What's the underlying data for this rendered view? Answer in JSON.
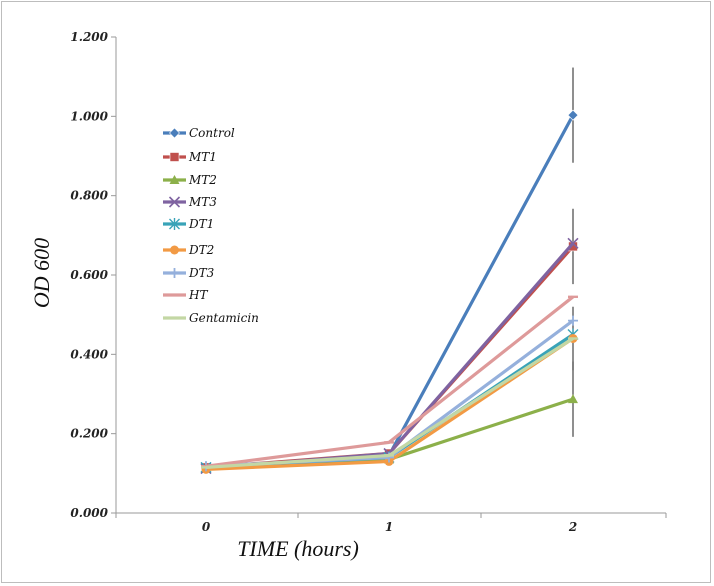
{
  "chart_data": {
    "type": "line",
    "xlabel": "TIME (hours)",
    "ylabel": "OD 600",
    "categories": [
      "0",
      "1",
      "2"
    ],
    "ylim": [
      0,
      1.2
    ],
    "yticks": [
      "0.000",
      "0.200",
      "0.400",
      "0.600",
      "0.800",
      "1.000",
      "1.200"
    ],
    "grid": false,
    "legend_position": "left",
    "series": [
      {
        "name": "Control",
        "color": "#4a7ebb",
        "marker": "diamond",
        "values": [
          0.115,
          0.145,
          1.003
        ],
        "error": [
          0,
          0,
          0.12
        ]
      },
      {
        "name": "MT1",
        "color": "#c0504d",
        "marker": "square",
        "values": [
          0.115,
          0.15,
          0.672
        ],
        "error": [
          0,
          0,
          0.095
        ]
      },
      {
        "name": "MT2",
        "color": "#8cb04a",
        "marker": "triangle",
        "values": [
          0.112,
          0.135,
          0.287
        ],
        "error": [
          0,
          0,
          0.095
        ]
      },
      {
        "name": "MT3",
        "color": "#7f63a1",
        "marker": "x",
        "values": [
          0.112,
          0.15,
          0.68
        ],
        "error": [
          0,
          0,
          0
        ]
      },
      {
        "name": "DT1",
        "color": "#39a3b8",
        "marker": "star",
        "values": [
          0.115,
          0.14,
          0.45
        ],
        "error": [
          0,
          0,
          0
        ]
      },
      {
        "name": "DT2",
        "color": "#f29a44",
        "marker": "circle",
        "values": [
          0.11,
          0.13,
          0.44
        ],
        "error": [
          0,
          0,
          0.08
        ]
      },
      {
        "name": "DT3",
        "color": "#95b0dc",
        "marker": "plus",
        "values": [
          0.118,
          0.14,
          0.485
        ],
        "error": [
          0,
          0,
          0
        ]
      },
      {
        "name": "HT",
        "color": "#de9a9a",
        "marker": "dash",
        "values": [
          0.118,
          0.178,
          0.545
        ],
        "error": [
          0,
          0,
          0
        ]
      },
      {
        "name": "Gentamicin",
        "color": "#c3d7a4",
        "marker": "dash",
        "values": [
          0.115,
          0.145,
          0.44
        ],
        "error": [
          0,
          0,
          0
        ]
      }
    ]
  }
}
